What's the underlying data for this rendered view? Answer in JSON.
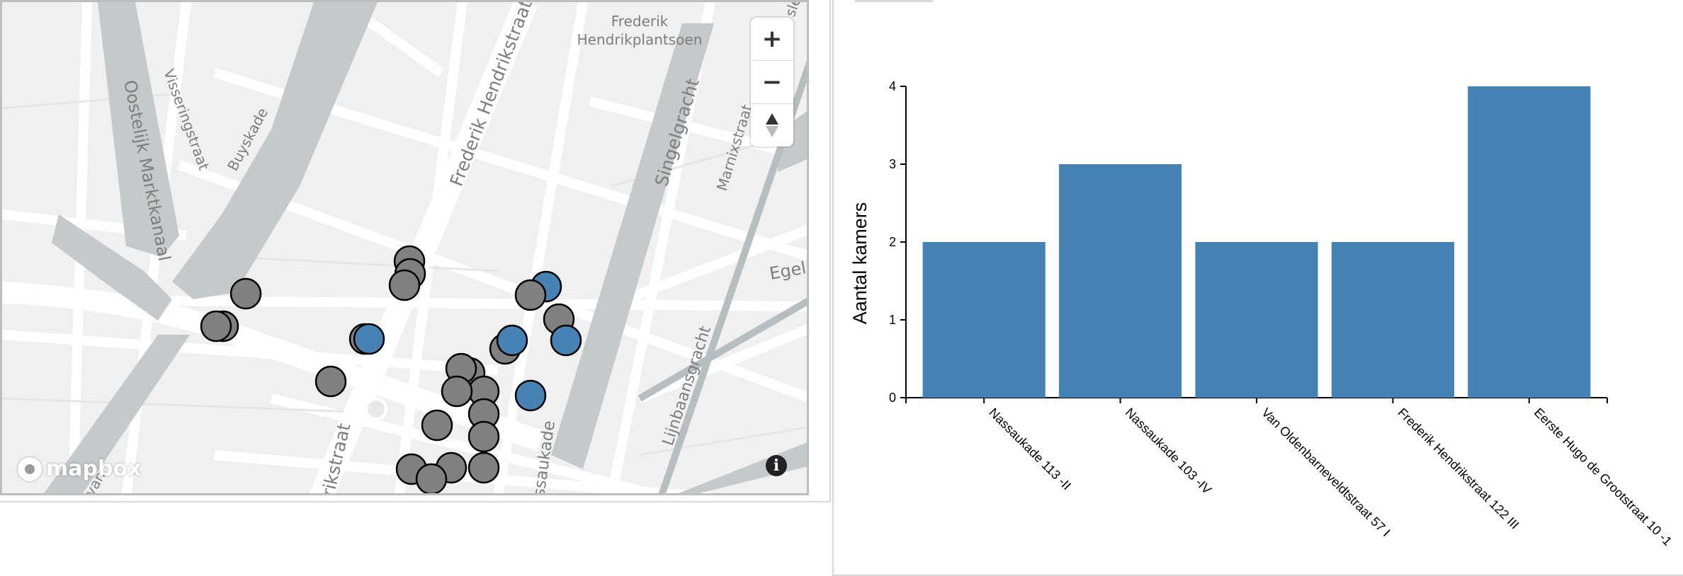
{
  "map": {
    "labels": {
      "oostelijk": "Oostelijk Marktkanaal",
      "visseringstraat": "Visseringstraat",
      "buyskade": "Buyskade",
      "fhstraat": "Frederik Hendrikstraat",
      "fhstraat_bottom": "rikstraat",
      "fhplantsoen_1": "Frederik",
      "fhplantsoen_2": "Hendrikplantsoen",
      "singelgracht": "Singelgracht",
      "marnixstraat": "Marnixstraat",
      "egela": "Egela",
      "lijnbaansgracht": "Lijnbaansgracht",
      "nassaukade": "ssaukade",
      "van_edge": "van",
      "top_edge": "sle"
    },
    "controls": {
      "zoom_in": "+",
      "zoom_out": "−",
      "compass": "compass"
    },
    "attribution": {
      "logo_text": "mapbox",
      "info": "i"
    },
    "colors": {
      "marker_gray": "#808080",
      "marker_blue": "#4682b4",
      "water": "#c4c9cc",
      "background": "#f0f0f0"
    }
  },
  "chart_data": {
    "type": "bar",
    "categories": [
      "Nassaukade 113 -II",
      "Nassaukade 103 -IV",
      "Van Oldenbarneveldtstraat 57 I",
      "Frederik Hendrikstraat 122 III",
      "Eerste Hugo de Grootstraat 10 -1"
    ],
    "values": [
      2,
      3,
      2,
      2,
      4
    ],
    "xlabel": "",
    "ylabel": "Aantal kamers",
    "ylim": [
      0,
      4
    ],
    "yticks": [
      "0",
      "1",
      "2",
      "3",
      "4"
    ],
    "bar_color": "#4682b4",
    "grid": false,
    "legend": "none"
  }
}
